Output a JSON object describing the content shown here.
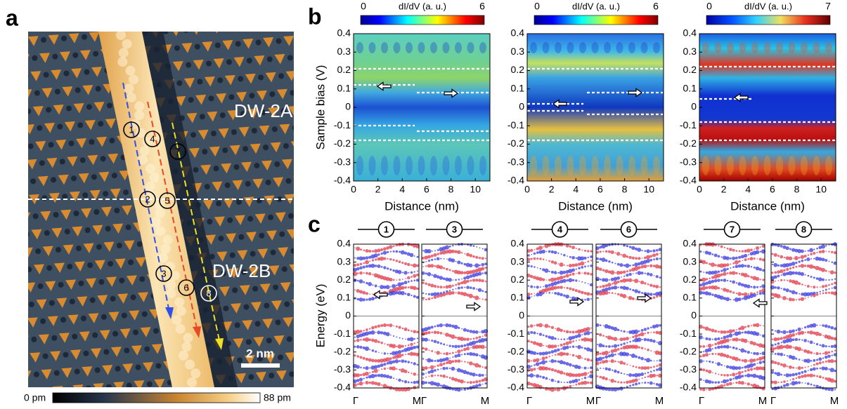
{
  "figure": {
    "a": {
      "label": "a",
      "annotations": [
        "DW-2A",
        "DW-2B"
      ],
      "scale_bar": "2 nm",
      "sites": [
        "1",
        "2",
        "3",
        "4",
        "5",
        "6",
        "7",
        "8"
      ],
      "colorbar": {
        "min": "0 pm",
        "max": "88 pm"
      }
    },
    "b": {
      "label": "b",
      "ylabel": "Sample bias (V)",
      "xlabel": "Distance (nm)",
      "xlim": [
        0,
        11.2
      ],
      "xticks": [
        0,
        2,
        4,
        6,
        8,
        10
      ],
      "ylim": [
        -0.4,
        0.4
      ],
      "yticks": [
        -0.4,
        -0.3,
        -0.2,
        -0.1,
        0,
        0.1,
        0.2,
        0.3,
        0.4
      ],
      "colorbars": [
        {
          "title": "dI/dV (a. u.)",
          "min": 0,
          "max": 6
        },
        {
          "title": "dI/dV (a. u.)",
          "min": 0,
          "max": 6
        },
        {
          "title": "dI/dV (a. u.)",
          "min": 0,
          "max": 7
        }
      ]
    },
    "c": {
      "label": "c",
      "ylabel": "Energy (eV)",
      "ylim": [
        -0.4,
        0.4
      ],
      "yticks": [
        -0.4,
        -0.3,
        -0.2,
        -0.1,
        0,
        0.1,
        0.2,
        0.3,
        0.4
      ],
      "x_start": "Γ",
      "x_end": "M",
      "sites": [
        "1",
        "3",
        "4",
        "6",
        "7",
        "8"
      ]
    }
  }
}
